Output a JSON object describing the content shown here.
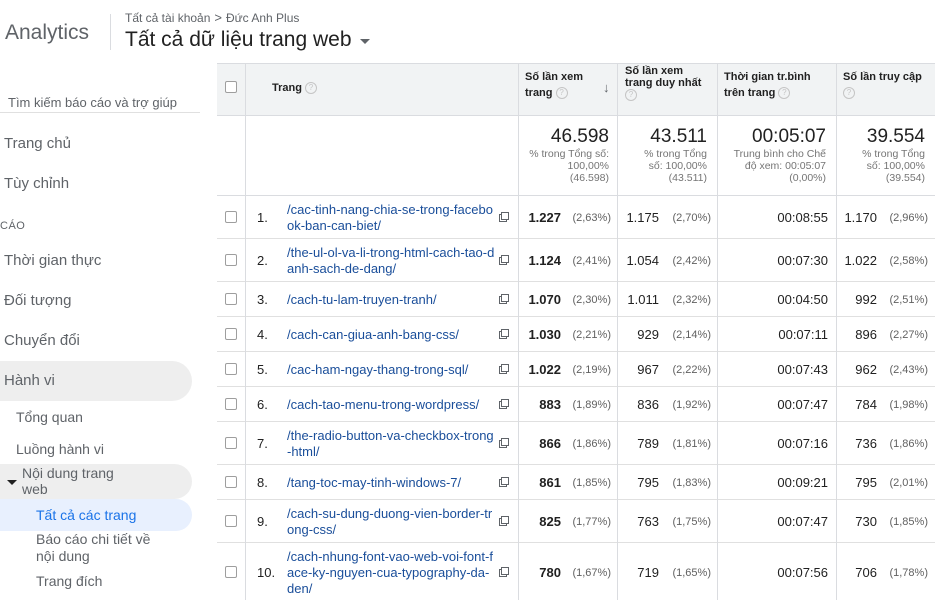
{
  "header": {
    "brand": "Analytics",
    "breadcrumb": [
      "Tất cả tài khoản",
      "Đức Anh Plus"
    ],
    "breadcrumb_sep": ">",
    "view_title": "Tất cả dữ liệu trang web"
  },
  "sidebar": {
    "search_placeholder": "Tìm kiếm báo cáo và trợ giúp",
    "home": "Trang chủ",
    "customize": "Tùy chỉnh",
    "section_label": "CÁO",
    "realtime": "Thời gian thực",
    "audience": "Đối tượng",
    "acquisition": "Chuyển đổi",
    "behavior": "Hành vi",
    "behavior_sub": {
      "overview": "Tổng quan",
      "flow": "Luồng hành vi",
      "site_content": "Nội dung trang web",
      "all_pages": "Tất cả các trang",
      "content_drilldown": "Báo cáo chi tiết về nội dung",
      "landing_pages": "Trang đích"
    }
  },
  "table": {
    "headers": {
      "page": "Trang",
      "pageviews": "Số lần xem trang",
      "unique_pageviews": "Số lần xem trang duy nhất",
      "avg_time": "Thời gian tr.bình trên trang",
      "entrances": "Số lần truy cập"
    },
    "summary": {
      "pageviews": {
        "value": "46.598",
        "sub1": "% trong Tổng số:",
        "sub2": "100,00%",
        "sub3": "(46.598)"
      },
      "unique_pageviews": {
        "value": "43.511",
        "sub1": "% trong Tổng",
        "sub2": "số: 100,00%",
        "sub3": "(43.511)"
      },
      "avg_time": {
        "value": "00:05:07",
        "sub1": "Trung bình cho Chế",
        "sub2": "độ xem: 00:05:07",
        "sub3": "(0,00%)"
      },
      "entrances": {
        "value": "39.554",
        "sub1": "% trong Tổng",
        "sub2": "số: 100,00%",
        "sub3": "(39.554)"
      }
    },
    "rows": [
      {
        "num": "1.",
        "page": "/cac-tinh-nang-chia-se-trong-facebook-ban-can-biet/",
        "pv": "1.227",
        "pv_pct": "(2,63%)",
        "upv": "1.175",
        "upv_pct": "(2,70%)",
        "time": "00:08:55",
        "ent": "1.170",
        "ent_pct": "(2,96%)"
      },
      {
        "num": "2.",
        "page": "/the-ul-ol-va-li-trong-html-cach-tao-danh-sach-de-dang/",
        "pv": "1.124",
        "pv_pct": "(2,41%)",
        "upv": "1.054",
        "upv_pct": "(2,42%)",
        "time": "00:07:30",
        "ent": "1.022",
        "ent_pct": "(2,58%)"
      },
      {
        "num": "3.",
        "page": "/cach-tu-lam-truyen-tranh/",
        "pv": "1.070",
        "pv_pct": "(2,30%)",
        "upv": "1.011",
        "upv_pct": "(2,32%)",
        "time": "00:04:50",
        "ent": "992",
        "ent_pct": "(2,51%)"
      },
      {
        "num": "4.",
        "page": "/cach-can-giua-anh-bang-css/",
        "pv": "1.030",
        "pv_pct": "(2,21%)",
        "upv": "929",
        "upv_pct": "(2,14%)",
        "time": "00:07:11",
        "ent": "896",
        "ent_pct": "(2,27%)"
      },
      {
        "num": "5.",
        "page": "/cac-ham-ngay-thang-trong-sql/",
        "pv": "1.022",
        "pv_pct": "(2,19%)",
        "upv": "967",
        "upv_pct": "(2,22%)",
        "time": "00:07:43",
        "ent": "962",
        "ent_pct": "(2,43%)"
      },
      {
        "num": "6.",
        "page": "/cach-tao-menu-trong-wordpress/",
        "pv": "883",
        "pv_pct": "(1,89%)",
        "upv": "836",
        "upv_pct": "(1,92%)",
        "time": "00:07:47",
        "ent": "784",
        "ent_pct": "(1,98%)"
      },
      {
        "num": "7.",
        "page": "/the-radio-button-va-checkbox-trong-html/",
        "pv": "866",
        "pv_pct": "(1,86%)",
        "upv": "789",
        "upv_pct": "(1,81%)",
        "time": "00:07:16",
        "ent": "736",
        "ent_pct": "(1,86%)"
      },
      {
        "num": "8.",
        "page": "/tang-toc-may-tinh-windows-7/",
        "pv": "861",
        "pv_pct": "(1,85%)",
        "upv": "795",
        "upv_pct": "(1,83%)",
        "time": "00:09:21",
        "ent": "795",
        "ent_pct": "(2,01%)"
      },
      {
        "num": "9.",
        "page": "/cach-su-dung-duong-vien-border-trong-css/",
        "pv": "825",
        "pv_pct": "(1,77%)",
        "upv": "763",
        "upv_pct": "(1,75%)",
        "time": "00:07:47",
        "ent": "730",
        "ent_pct": "(1,85%)"
      },
      {
        "num": "10.",
        "page": "/cach-nhung-font-vao-web-voi-font-face-ky-nguyen-cua-typography-da-den/",
        "pv": "780",
        "pv_pct": "(1,67%)",
        "upv": "719",
        "upv_pct": "(1,65%)",
        "time": "00:07:56",
        "ent": "706",
        "ent_pct": "(1,78%)"
      }
    ]
  }
}
